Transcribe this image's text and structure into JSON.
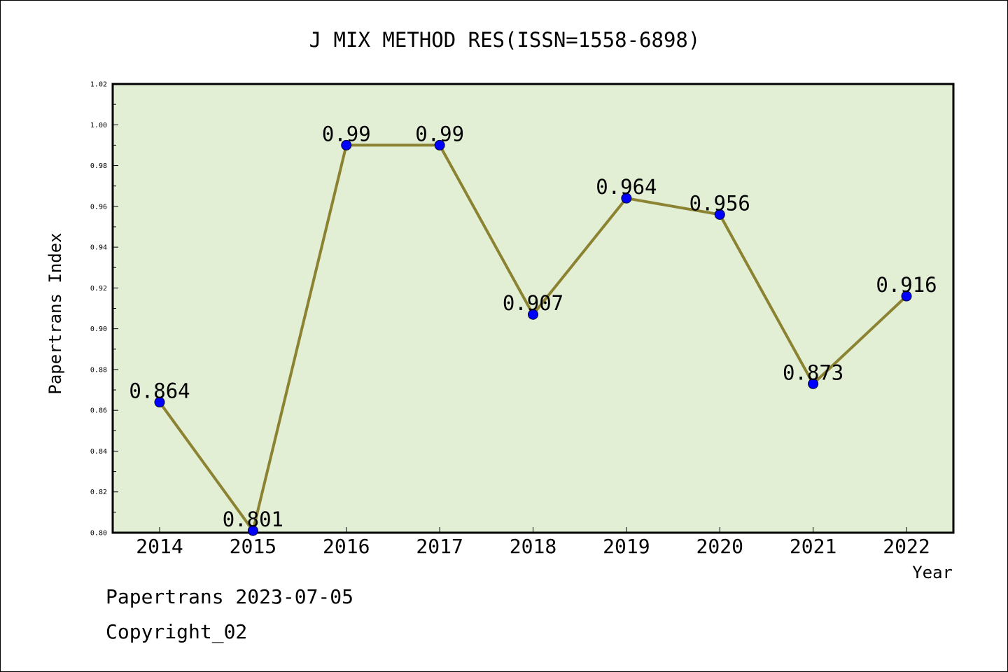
{
  "chart_data": {
    "type": "line",
    "title": "J MIX METHOD RES(ISSN=1558-6898)",
    "xlabel": "Year",
    "ylabel": "Papertrans Index",
    "categories": [
      "2014",
      "2015",
      "2016",
      "2017",
      "2018",
      "2019",
      "2020",
      "2021",
      "2022"
    ],
    "series": [
      {
        "values": [
          0.864,
          0.801,
          0.99,
          0.99,
          0.907,
          0.964,
          0.956,
          0.873,
          0.916
        ],
        "data_labels": [
          "0.864",
          "0.801",
          "0.99",
          "0.99",
          "0.907",
          "0.964",
          "0.956",
          "0.873",
          "0.916"
        ]
      }
    ],
    "ylim": [
      0.8,
      1.02
    ],
    "yticks": [
      "0.80",
      "0.82",
      "0.84",
      "0.86",
      "0.88",
      "0.90",
      "0.92",
      "0.94",
      "0.96",
      "0.98",
      "1.00",
      "1.02"
    ],
    "grid": false,
    "colors": {
      "plot_background": "#e2efd5",
      "line": "#8b8232",
      "marker": "#0000ff",
      "axis": "#000000"
    }
  },
  "footer": {
    "line1": "Papertrans 2023-07-05",
    "line2": "Copyright_02"
  }
}
